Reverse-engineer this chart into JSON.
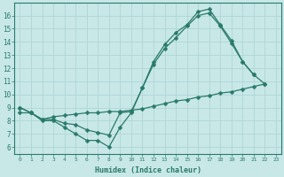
{
  "xlabel": "Humidex (Indice chaleur)",
  "bg_color": "#c8e8e8",
  "line_color": "#2a7a6a",
  "grid_color": "#b0d4d4",
  "xlim": [
    -0.5,
    23.5
  ],
  "ylim": [
    5.5,
    17.0
  ],
  "yticks": [
    6,
    7,
    8,
    9,
    10,
    11,
    12,
    13,
    14,
    15,
    16
  ],
  "xticks": [
    0,
    1,
    2,
    3,
    4,
    5,
    6,
    7,
    8,
    9,
    10,
    11,
    12,
    13,
    14,
    15,
    16,
    17,
    18,
    19,
    20,
    21,
    22,
    23
  ],
  "line1_x": [
    0,
    1,
    2,
    3,
    4,
    5,
    6,
    7,
    8,
    9,
    10,
    11,
    12,
    13,
    14,
    15,
    16,
    17,
    18,
    19,
    20,
    21
  ],
  "line1_y": [
    9.0,
    8.6,
    8.0,
    8.0,
    7.5,
    7.0,
    6.5,
    6.5,
    6.0,
    7.5,
    8.6,
    10.5,
    12.5,
    13.8,
    14.7,
    15.3,
    16.3,
    16.5,
    15.3,
    14.1,
    12.5,
    11.5
  ],
  "line2_x": [
    0,
    1,
    2,
    3,
    4,
    5,
    6,
    7,
    8,
    9,
    10,
    11,
    12,
    13,
    14,
    15,
    16,
    17,
    18,
    19,
    20,
    21,
    22
  ],
  "line2_y": [
    9.0,
    8.6,
    8.1,
    8.1,
    7.8,
    7.7,
    7.3,
    7.1,
    6.9,
    8.6,
    8.7,
    10.5,
    12.3,
    13.5,
    14.3,
    15.2,
    16.0,
    16.2,
    15.2,
    13.9,
    12.5,
    11.5,
    10.8
  ],
  "line3_x": [
    0,
    1,
    2,
    3,
    4,
    5,
    6,
    7,
    8,
    9,
    10,
    11,
    12,
    13,
    14,
    15,
    16,
    17,
    18,
    19,
    20,
    21,
    22
  ],
  "line3_y": [
    8.6,
    8.6,
    8.1,
    8.3,
    8.4,
    8.5,
    8.6,
    8.6,
    8.7,
    8.7,
    8.8,
    8.9,
    9.1,
    9.3,
    9.5,
    9.6,
    9.8,
    9.9,
    10.1,
    10.2,
    10.4,
    10.6,
    10.8
  ]
}
